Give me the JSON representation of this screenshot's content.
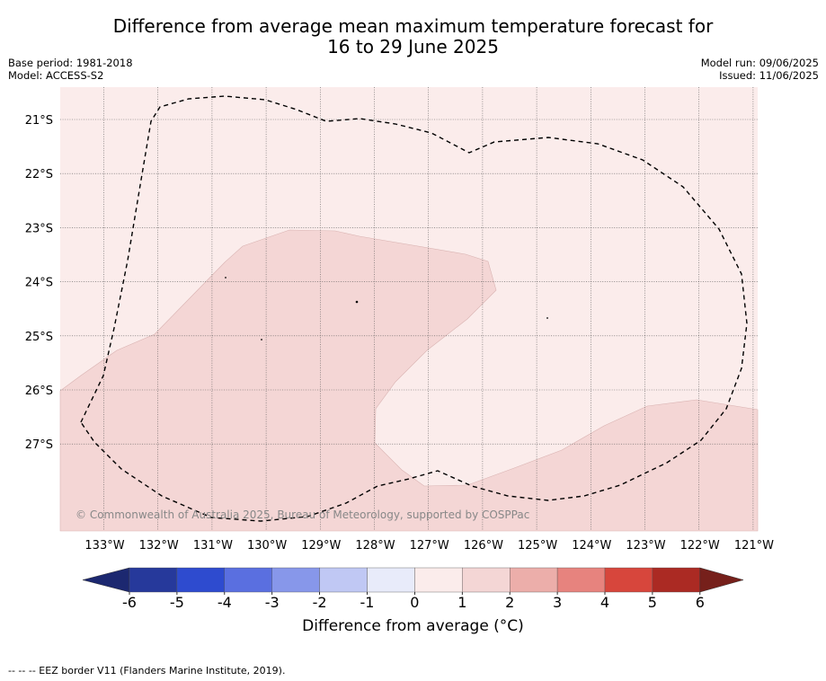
{
  "header": {
    "title_line1": "Difference from average mean maximum temperature forecast for",
    "title_line2": "16 to 29 June 2025",
    "base_period": "Base period: 1981-2018",
    "model": "Model: ACCESS-S2",
    "model_run": "Model run: 09/06/2025",
    "issued": "Issued: 11/06/2025"
  },
  "map": {
    "copyright": "© Commonwealth of Australia 2025, Bureau of Meteorology, supported by COSPPac",
    "lat_labels": [
      "21°S",
      "22°S",
      "23°S",
      "24°S",
      "25°S",
      "26°S",
      "27°S"
    ],
    "lon_labels": [
      "133°W",
      "132°W",
      "131°W",
      "130°W",
      "129°W",
      "128°W",
      "127°W",
      "126°W",
      "125°W",
      "124°W",
      "123°W",
      "122°W",
      "121°W"
    ],
    "background_anomaly_range": "0 to 1",
    "shaded_anomaly_range": "1 to 2",
    "colors": {
      "range_0_1": "#fbeceb",
      "range_1_2": "#f4d6d5",
      "eez_line": "#000000"
    }
  },
  "colorbar": {
    "label": "Difference from average (°C)",
    "ticks": [
      "-6",
      "-5",
      "-4",
      "-3",
      "-2",
      "-1",
      "0",
      "1",
      "2",
      "3",
      "4",
      "5",
      "6"
    ],
    "colors": [
      "#26399b",
      "#2e4bcf",
      "#5a6fe0",
      "#8797ea",
      "#c0c8f4",
      "#e8ebfa",
      "#fbeceb",
      "#f4d6d5",
      "#ecaeaa",
      "#e7837e",
      "#d7463c",
      "#ab2a23"
    ],
    "under_color": "#1c2870",
    "over_color": "#76201b"
  },
  "footer": {
    "legend_text": "--  --  -- EEZ border V11 (Flanders Marine Institute, 2019)."
  }
}
